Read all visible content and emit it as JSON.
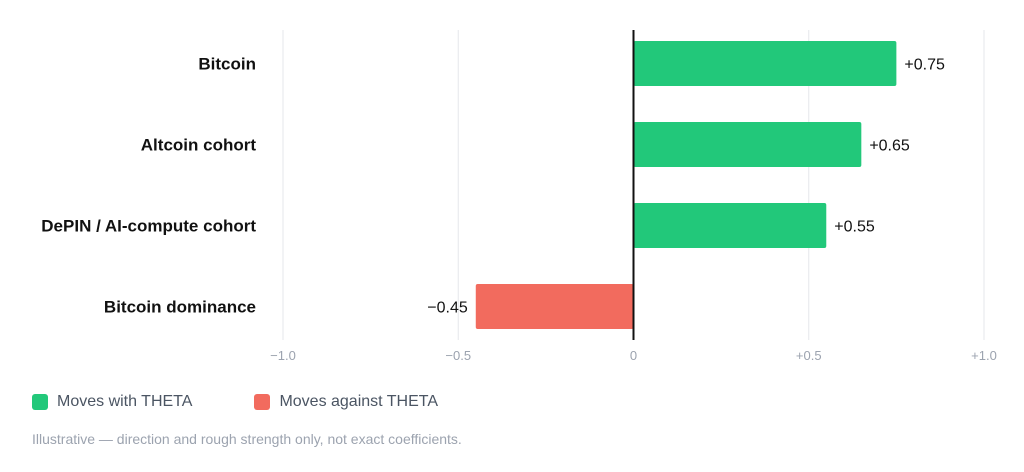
{
  "colors": {
    "positive": "#22c87a",
    "negative": "#f26b5e",
    "grid": "#e5e7eb",
    "zero_line": "#111111"
  },
  "chart_data": {
    "type": "bar",
    "orientation": "horizontal",
    "categories": [
      "Bitcoin",
      "Altcoin cohort",
      "DePIN / AI-compute cohort",
      "Bitcoin dominance"
    ],
    "values": [
      0.75,
      0.65,
      0.55,
      -0.45
    ],
    "value_labels": [
      "+0.75",
      "+0.65",
      "+0.55",
      "−0.45"
    ],
    "xlim": [
      -1.0,
      1.0
    ],
    "ticks": [
      -1.0,
      -0.5,
      0,
      0.5,
      1.0
    ],
    "tick_labels": [
      "−1.0",
      "−0.5",
      "0",
      "+0.5",
      "+1.0"
    ],
    "grid": true,
    "legend": [
      {
        "label": "Moves with THETA",
        "color": "#22c87a"
      },
      {
        "label": "Moves against THETA",
        "color": "#f26b5e"
      }
    ],
    "legend_position": "bottom-left"
  },
  "footnote": "Illustrative — direction and rough strength only, not exact coefficients."
}
